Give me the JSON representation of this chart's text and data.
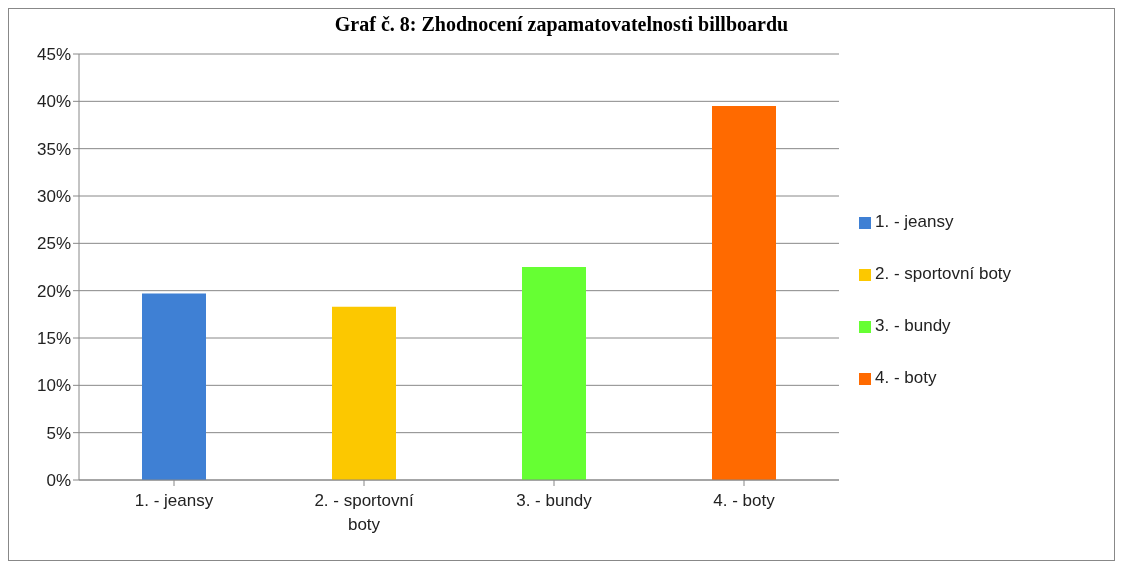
{
  "chart_data": {
    "type": "bar",
    "title": "Graf č. 8: Zhodnocení zapamatovatelnosti billboardu",
    "categories": [
      "1. - jeansy",
      "2. - sportovní boty",
      "3. - bundy",
      "4. - boty"
    ],
    "series": [
      {
        "name": "1. - jeansy",
        "color": "#3f80d4",
        "values": [
          0.197,
          null,
          null,
          null
        ]
      },
      {
        "name": "2. - sportovní boty",
        "color": "#fcc800",
        "values": [
          null,
          0.183,
          null,
          null
        ]
      },
      {
        "name": "3. - bundy",
        "color": "#66ff33",
        "values": [
          null,
          null,
          0.225,
          null
        ]
      },
      {
        "name": "4. - boty",
        "color": "#ff6a00",
        "values": [
          null,
          null,
          null,
          0.395
        ]
      }
    ],
    "stacked": true,
    "ylim": [
      0,
      0.45
    ],
    "yticks": [
      {
        "value": 0,
        "label": "0%"
      },
      {
        "value": 0.05,
        "label": "5%"
      },
      {
        "value": 0.1,
        "label": "10%"
      },
      {
        "value": 0.15,
        "label": "15%"
      },
      {
        "value": 0.2,
        "label": "20%"
      },
      {
        "value": 0.25,
        "label": "25%"
      },
      {
        "value": 0.3,
        "label": "30%"
      },
      {
        "value": 0.35,
        "label": "35%"
      },
      {
        "value": 0.4,
        "label": "40%"
      },
      {
        "value": 0.45,
        "label": "45%"
      }
    ],
    "grid": "y",
    "legend": "right"
  }
}
